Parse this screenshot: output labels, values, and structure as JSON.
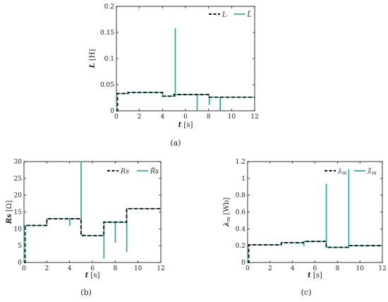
{
  "colors": {
    "actual": "#111111",
    "estimate": "#1fa89a"
  },
  "chart_data": [
    {
      "type": "line",
      "caption": "(a)",
      "xlabel_italic": "t",
      "xlabel_unit": "[s]",
      "ylabel_italic": "L",
      "ylabel_unit": "[H]",
      "xlim": [
        0,
        12
      ],
      "ylim": [
        0,
        0.2
      ],
      "xticks": [
        0,
        2,
        4,
        6,
        8,
        10,
        12
      ],
      "yticks": [
        0,
        0.05,
        0.1,
        0.15,
        0.2
      ],
      "ytick_labels": [
        "0",
        "0.05",
        "0.1",
        "0.15",
        "0.2"
      ],
      "legend_position": "top-right",
      "series": [
        {
          "name": "L",
          "style": "dashed",
          "x": [
            0,
            0.1,
            0.1,
            1,
            1,
            4,
            4,
            5,
            5,
            8,
            8,
            12
          ],
          "y": [
            0,
            0,
            0.033,
            0.033,
            0.035,
            0.035,
            0.028,
            0.028,
            0.031,
            0.031,
            0.026,
            0.026
          ]
        },
        {
          "name": "L̂",
          "style": "solid",
          "x": [
            0,
            0.03,
            0.05,
            1,
            1.02,
            4,
            4.02,
            5.1,
            5.1,
            5.12,
            5.12,
            7,
            7,
            7.02,
            7.02,
            8,
            8.02,
            8.05,
            8.05,
            8.07,
            8.07,
            9,
            9,
            9.02,
            9.02,
            12
          ],
          "y": [
            0,
            0.03,
            0.033,
            0.033,
            0.035,
            0.035,
            0.028,
            0.028,
            0.157,
            0.157,
            0.031,
            0.031,
            0.002,
            0.002,
            0.031,
            0.031,
            0.026,
            0.026,
            0.012,
            0.012,
            0.026,
            0.026,
            0.002,
            0.002,
            0.026,
            0.026
          ]
        }
      ]
    },
    {
      "type": "line",
      "caption": "(b)",
      "xlabel_italic": "t",
      "xlabel_unit": "[s]",
      "ylabel_italic": "Rs",
      "ylabel_unit": "[Ω]",
      "xlim": [
        0,
        12
      ],
      "ylim": [
        0,
        30
      ],
      "xticks": [
        0,
        2,
        4,
        6,
        8,
        10,
        12
      ],
      "yticks": [
        0,
        5,
        10,
        15,
        20,
        25,
        30
      ],
      "ytick_labels": [
        "0",
        "5",
        "10",
        "15",
        "20",
        "25",
        "30"
      ],
      "legend_position": "top-right",
      "series": [
        {
          "name": "Rs",
          "style": "dashed",
          "x": [
            0,
            0.1,
            0.1,
            2,
            2,
            5,
            5,
            7,
            7,
            9,
            9,
            12
          ],
          "y": [
            0,
            0,
            11,
            11,
            13,
            13,
            8,
            8,
            12,
            12,
            16,
            16
          ],
          "elbow": [
            2,
            7
          ]
        },
        {
          "name": "R̂s",
          "style": "solid",
          "x": [
            0,
            0.03,
            0.05,
            2,
            2.02,
            4,
            4,
            4.02,
            4.02,
            5,
            5,
            5.02,
            5.02,
            5.3,
            5.3,
            7,
            7,
            7.02,
            7.02,
            8,
            8,
            8.02,
            8.02,
            9,
            9,
            9.02,
            9.02,
            12
          ],
          "y": [
            0,
            10,
            11,
            11,
            13,
            13,
            11,
            11,
            13,
            13,
            30,
            30,
            8.2,
            8.2,
            8,
            8,
            1.3,
            1.3,
            12,
            12,
            6,
            6,
            12,
            12,
            3.3,
            3.3,
            16,
            16
          ]
        }
      ]
    },
    {
      "type": "line",
      "caption": "(c)",
      "xlabel_italic": "t",
      "xlabel_unit": "[s]",
      "ylabel_italic": "λm",
      "ylabel_unit": "[Wb]",
      "xlim": [
        0,
        12
      ],
      "ylim": [
        0,
        1.2
      ],
      "xticks": [
        0,
        2,
        4,
        6,
        8,
        10,
        12
      ],
      "yticks": [
        0,
        0.2,
        0.4,
        0.6,
        0.8,
        1,
        1.2
      ],
      "ytick_labels": [
        "0",
        "0.2",
        "0.4",
        "0.6",
        "0.8",
        "1",
        "1.2"
      ],
      "legend_position": "top-right",
      "series": [
        {
          "name": "λm",
          "style": "dashed",
          "x": [
            0,
            0.1,
            0.1,
            3,
            3,
            5,
            5,
            7,
            7,
            9,
            9,
            12
          ],
          "y": [
            0,
            0,
            0.21,
            0.21,
            0.235,
            0.235,
            0.25,
            0.25,
            0.18,
            0.18,
            0.2,
            0.2
          ]
        },
        {
          "name": "λ̂m",
          "style": "solid",
          "x": [
            0,
            0.03,
            0.05,
            3,
            3.02,
            5,
            5,
            5.02,
            5.02,
            7,
            7,
            7.02,
            7.02,
            9,
            9,
            9.02,
            9.02,
            12
          ],
          "y": [
            0,
            0.15,
            0.21,
            0.21,
            0.235,
            0.235,
            0.2,
            0.2,
            0.25,
            0.25,
            0.93,
            0.93,
            0.18,
            0.18,
            1.1,
            1.1,
            0.2,
            0.2
          ]
        }
      ]
    }
  ]
}
